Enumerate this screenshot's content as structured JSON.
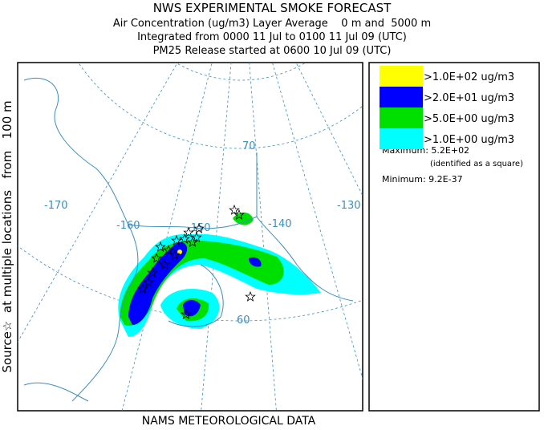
{
  "header": {
    "title": "NWS EXPERIMENTAL SMOKE FORECAST",
    "lines": [
      "Air Concentration (ug/m3) Layer Average    0 m and  5000 m",
      "Integrated from 0000 11 Jul to 0100 11 Jul 09 (UTC)",
      "PM25 Release started at 0600 10 Jul 09 (UTC)"
    ]
  },
  "side_label": "Source☆  at multiple locations   from   100 m",
  "footer": "NAMS METEOROLOGICAL DATA",
  "map": {
    "labels": [
      "-170",
      "-160",
      "-150",
      "-140",
      "-130",
      "70",
      "60"
    ]
  },
  "legend": {
    "entries": [
      {
        "label": ">1.0E+02 ug/m3",
        "color": "#ffff00"
      },
      {
        "label": ">2.0E+01 ug/m3",
        "color": "#0000ff"
      },
      {
        "label": ">5.0E+00 ug/m3",
        "color": "#00e000"
      },
      {
        "label": ">1.0E+00 ug/m3",
        "color": "#00ffff"
      }
    ],
    "maximum": "Maximum: 5.2E+02",
    "maximum_note": "(identified as a square)",
    "minimum": "Minimum: 9.2E-37"
  }
}
